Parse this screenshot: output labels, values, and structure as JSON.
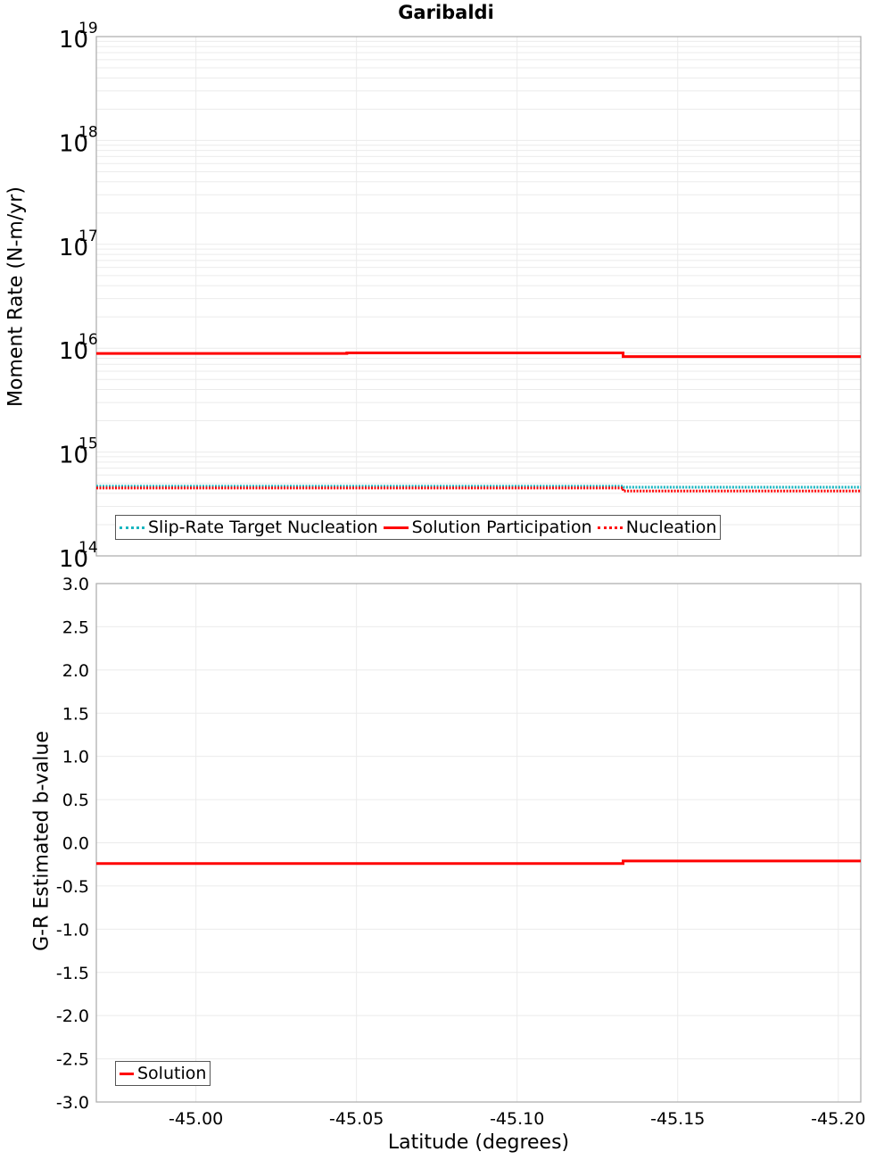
{
  "title": "Garibaldi",
  "colors": {
    "solution": "#ff0000",
    "target": "#19b6c0",
    "grid": "#ebebeb",
    "frame": "#aaaaaa"
  },
  "top_panel": {
    "ylabel": "Moment Rate (N-m/yr)",
    "yticks": [
      {
        "base": "10",
        "exp": "19"
      },
      {
        "base": "10",
        "exp": "18"
      },
      {
        "base": "10",
        "exp": "17"
      },
      {
        "base": "10",
        "exp": "16"
      },
      {
        "base": "10",
        "exp": "15"
      },
      {
        "base": "10",
        "exp": "14"
      }
    ],
    "legend": [
      "Slip-Rate Target Nucleation",
      "Solution Participation",
      "Nucleation"
    ]
  },
  "bottom_panel": {
    "ylabel": "G-R Estimated b-value",
    "yticks": [
      "3.0",
      "2.5",
      "2.0",
      "1.5",
      "1.0",
      "0.5",
      "0.0",
      "-0.5",
      "-1.0",
      "-1.5",
      "-2.0",
      "-2.5",
      "-3.0"
    ],
    "legend": [
      "Solution"
    ]
  },
  "xaxis": {
    "label": "Latitude (degrees)",
    "ticks": [
      "-45.00",
      "-45.05",
      "-45.10",
      "-45.15",
      "-45.20"
    ]
  },
  "chart_data": [
    {
      "type": "line",
      "title": "Garibaldi",
      "xlabel": "Latitude (degrees)",
      "ylabel": "Moment Rate (N-m/yr)",
      "yscale": "log",
      "ylim": [
        100000000000000.0,
        1e+19
      ],
      "xlim": [
        -44.969,
        -45.207
      ],
      "x_ticks": [
        -45.0,
        -45.05,
        -45.1,
        -45.15,
        -45.2
      ],
      "step_edges": [
        -44.969,
        -45.047,
        -45.133,
        -45.207
      ],
      "series": [
        {
          "name": "Slip-Rate Target Nucleation",
          "style": "dotted",
          "color": "#19b6c0",
          "values": [
            460000000000000.0,
            460000000000000.0,
            450000000000000.0
          ]
        },
        {
          "name": "Solution Participation",
          "style": "solid",
          "color": "#ff0000",
          "values": [
            8900000000000000.0,
            9000000000000000.0,
            8300000000000000.0
          ]
        },
        {
          "name": "Nucleation",
          "style": "dotted",
          "color": "#ff0000",
          "values": [
            460000000000000.0,
            460000000000000.0,
            430000000000000.0
          ]
        }
      ],
      "grid": true,
      "legend_position": "lower left"
    },
    {
      "type": "line",
      "xlabel": "Latitude (degrees)",
      "ylabel": "G-R Estimated b-value",
      "ylim": [
        -3.0,
        3.0
      ],
      "xlim": [
        -44.969,
        -45.207
      ],
      "step_edges": [
        -44.969,
        -45.047,
        -45.133,
        -45.207
      ],
      "series": [
        {
          "name": "Solution",
          "style": "solid",
          "color": "#ff0000",
          "values": [
            -0.24,
            -0.24,
            -0.21
          ]
        }
      ],
      "grid": true,
      "legend_position": "lower left"
    }
  ]
}
